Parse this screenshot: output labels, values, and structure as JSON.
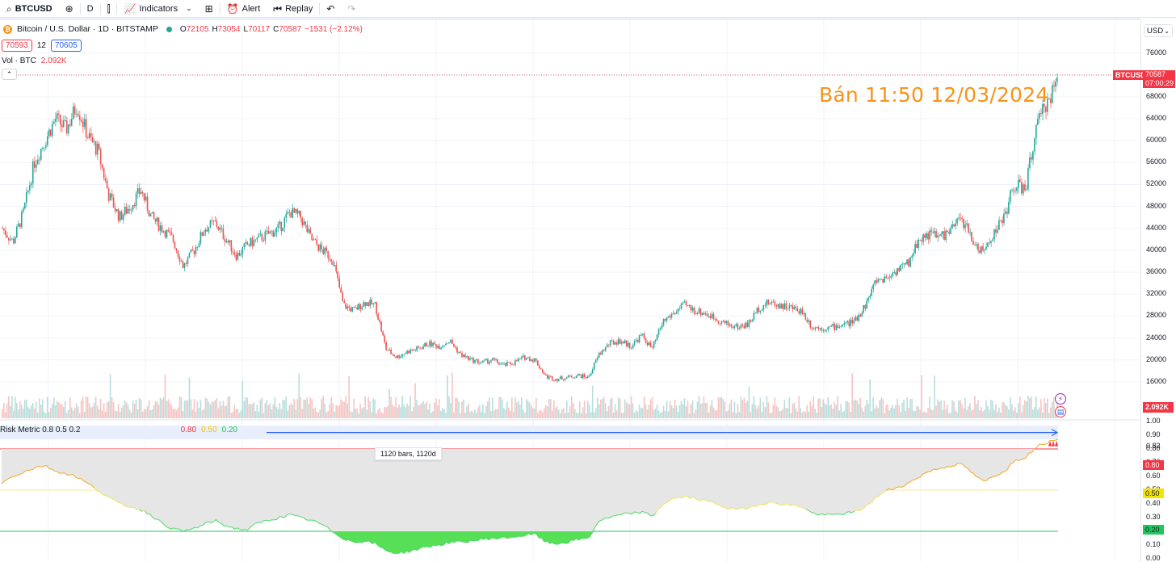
{
  "toolbar": {
    "symbol": "BTCUSD",
    "interval": "D",
    "indicators_label": "Indicators",
    "alert_label": "Alert",
    "replay_label": "Replay"
  },
  "legend": {
    "title": "Bitcoin / U.S. Dollar · 1D · BITSTAMP",
    "open_key": "O",
    "open": "72105",
    "high_key": "H",
    "high": "73054",
    "low_key": "L",
    "low": "70117",
    "close_key": "C",
    "close": "70587",
    "change": "−1531 (−2.12%)",
    "sell_price": "70593",
    "spread": "12",
    "buy_price": "70605",
    "volume_label": "Vol · BTC",
    "volume_value": "2.092K"
  },
  "annotation": "Bán 11:50 12/03/2024",
  "price_scale": {
    "currency": "USD",
    "ticks": [
      "76000",
      "72000",
      "68000",
      "64000",
      "60000",
      "56000",
      "52000",
      "48000",
      "44000",
      "40000",
      "36000",
      "32000",
      "28000",
      "24000",
      "20000",
      "16000"
    ],
    "symbol_tag": "BTCUSD",
    "last_price": "70587",
    "countdown": "07:00:29",
    "volume_tag": "2.092K"
  },
  "risk_pane": {
    "title": "Risk Metric 0.8 0.5 0.2",
    "level_high": "0.80",
    "level_mid": "0.50",
    "level_low": "0.20",
    "bars_label": "1120 bars, 1120d",
    "ticks": [
      "1.00",
      "0.90",
      "0.82",
      "0.80",
      "0.70",
      "0.60",
      "0.50",
      "0.40",
      "0.30",
      "0.20",
      "0.10",
      "0.00"
    ],
    "tag_high": "0.80",
    "tag_mid": "0.50",
    "tag_low": "0.20"
  },
  "colors": {
    "up": "#26a69a",
    "down": "#ef5350",
    "accent": "#2962ff",
    "risk_high": "#f23645",
    "risk_mid": "#f5c400",
    "risk_low": "#22c55e",
    "annotation": "#f7931a"
  },
  "chart_data": {
    "type": "candlestick",
    "title": "",
    "price_range": [
      12000,
      78000
    ],
    "closes": [
      44000,
      41500,
      47000,
      56000,
      60000,
      64000,
      62000,
      66500,
      61000,
      58000,
      50000,
      46000,
      48000,
      51000,
      46000,
      44000,
      42000,
      37000,
      40000,
      44000,
      45000,
      42000,
      39000,
      41000,
      42000,
      43000,
      44000,
      47000,
      46000,
      42000,
      40000,
      38500,
      30000,
      29000,
      30500,
      30000,
      22000,
      20500,
      21500,
      22000,
      23000,
      22500,
      23500,
      21000,
      20000,
      19500,
      20000,
      19000,
      19500,
      20500,
      20000,
      17000,
      16500,
      16800,
      17200,
      16800,
      21000,
      23000,
      23500,
      22500,
      24500,
      22000,
      27000,
      28500,
      30000,
      29000,
      28500,
      27500,
      26500,
      26000,
      26500,
      29500,
      30500,
      30000,
      29500,
      29000,
      26000,
      25800,
      26000,
      26500,
      27000,
      30000,
      34500,
      35000,
      36500,
      37500,
      42000,
      43000,
      42500,
      43500,
      46000,
      42000,
      39500,
      43000,
      46000,
      52000,
      51000,
      62000,
      67000,
      70587
    ],
    "volume_label": "Vol · BTC",
    "risk_metric": {
      "range": [
        0,
        1
      ],
      "levels": [
        0.8,
        0.5,
        0.2
      ],
      "values": [
        0.55,
        0.6,
        0.63,
        0.66,
        0.68,
        0.64,
        0.62,
        0.6,
        0.55,
        0.5,
        0.45,
        0.4,
        0.38,
        0.36,
        0.32,
        0.26,
        0.22,
        0.2,
        0.22,
        0.25,
        0.28,
        0.24,
        0.22,
        0.21,
        0.26,
        0.28,
        0.3,
        0.32,
        0.3,
        0.28,
        0.25,
        0.2,
        0.15,
        0.12,
        0.13,
        0.11,
        0.06,
        0.04,
        0.05,
        0.07,
        0.09,
        0.1,
        0.12,
        0.12,
        0.13,
        0.14,
        0.15,
        0.15,
        0.16,
        0.17,
        0.18,
        0.12,
        0.11,
        0.12,
        0.14,
        0.15,
        0.28,
        0.3,
        0.32,
        0.33,
        0.34,
        0.31,
        0.4,
        0.44,
        0.45,
        0.44,
        0.42,
        0.4,
        0.37,
        0.36,
        0.37,
        0.4,
        0.41,
        0.4,
        0.39,
        0.38,
        0.33,
        0.32,
        0.32,
        0.33,
        0.34,
        0.38,
        0.45,
        0.5,
        0.52,
        0.55,
        0.6,
        0.64,
        0.66,
        0.68,
        0.69,
        0.62,
        0.56,
        0.6,
        0.64,
        0.72,
        0.74,
        0.82,
        0.85,
        0.88
      ]
    }
  }
}
